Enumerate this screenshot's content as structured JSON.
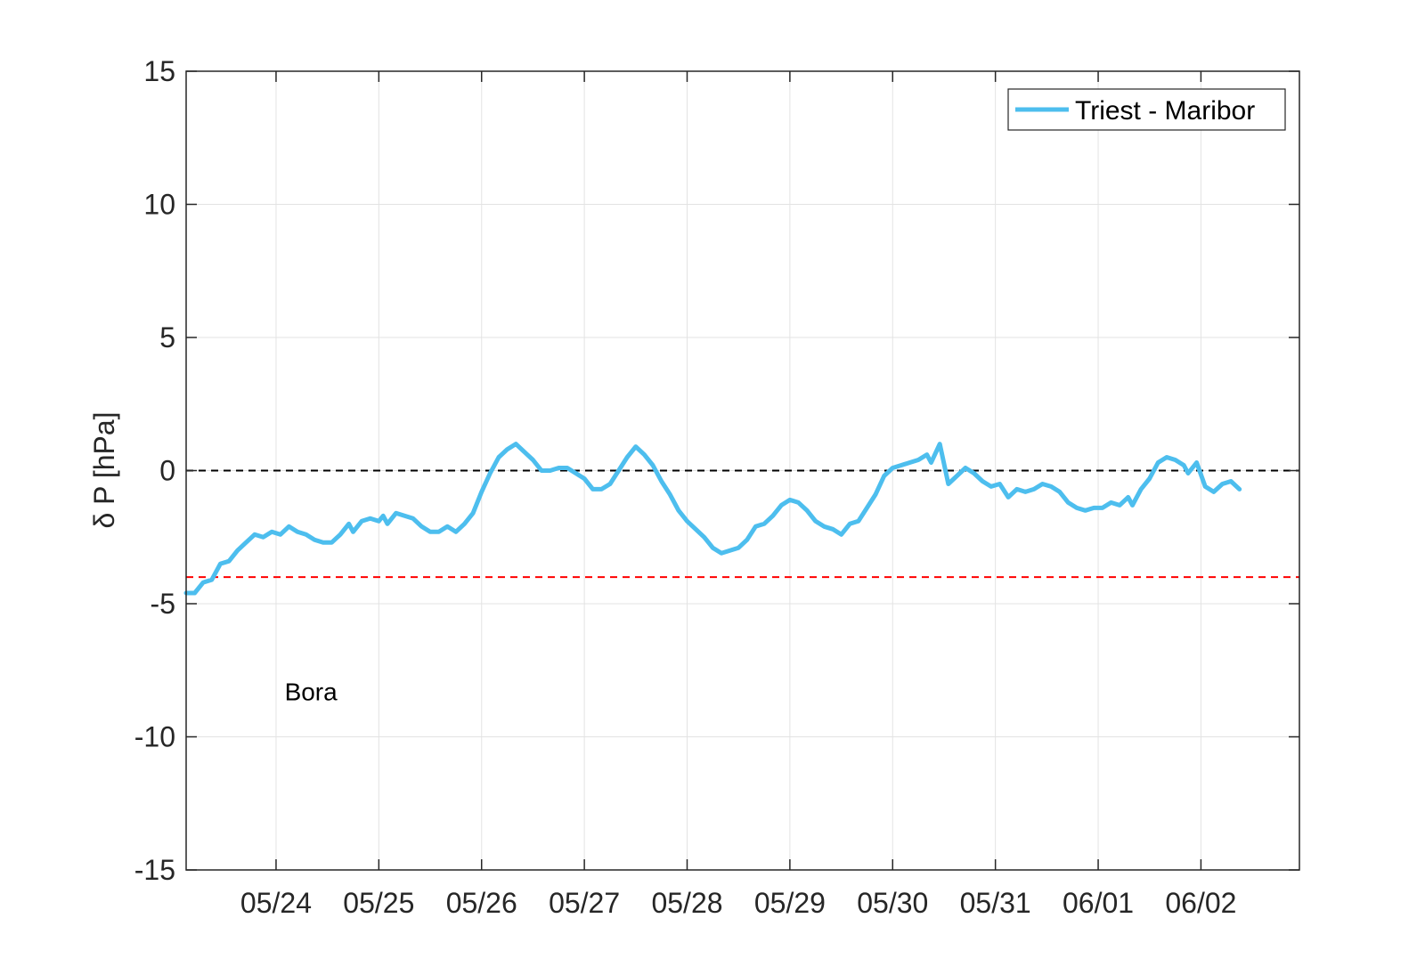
{
  "chart_data": {
    "type": "line",
    "title": "",
    "xlabel": "",
    "ylabel": "δ P [hPa]",
    "ylim": [
      -15,
      15
    ],
    "yticks": [
      15,
      10,
      5,
      0,
      -5,
      -10,
      -15
    ],
    "xlim": [
      "05/23 03:00",
      "06/02 23:00"
    ],
    "xticks": [
      "05/24",
      "05/25",
      "05/26",
      "05/27",
      "05/28",
      "05/29",
      "05/30",
      "05/31",
      "06/01",
      "06/02"
    ],
    "grid": true,
    "legend_position": "top-right",
    "colors": {
      "series": "#4DBEEE",
      "zero_line": "#000000",
      "threshold_line": "#FF0000",
      "grid": "#e3e3e3",
      "axis": "#262626"
    },
    "reference_lines": [
      {
        "y": 0,
        "color": "#000000",
        "style": "dashed"
      },
      {
        "y": -4,
        "color": "#FF0000",
        "style": "dashed"
      }
    ],
    "annotations": [
      {
        "text": "Bora",
        "x": "05/24 02:00",
        "y": -8.3
      }
    ],
    "series": [
      {
        "name": "Triest - Maribor",
        "color": "#4DBEEE",
        "points": [
          [
            "05/23 03:00",
            -4.6
          ],
          [
            "05/23 05:00",
            -4.6
          ],
          [
            "05/23 07:00",
            -4.2
          ],
          [
            "05/23 09:00",
            -4.1
          ],
          [
            "05/23 11:00",
            -3.5
          ],
          [
            "05/23 13:00",
            -3.4
          ],
          [
            "05/23 15:00",
            -3.0
          ],
          [
            "05/23 17:00",
            -2.7
          ],
          [
            "05/23 19:00",
            -2.4
          ],
          [
            "05/23 21:00",
            -2.5
          ],
          [
            "05/23 23:00",
            -2.3
          ],
          [
            "05/24 01:00",
            -2.4
          ],
          [
            "05/24 03:00",
            -2.1
          ],
          [
            "05/24 05:00",
            -2.3
          ],
          [
            "05/24 07:00",
            -2.4
          ],
          [
            "05/24 09:00",
            -2.6
          ],
          [
            "05/24 11:00",
            -2.7
          ],
          [
            "05/24 13:00",
            -2.7
          ],
          [
            "05/24 15:00",
            -2.4
          ],
          [
            "05/24 17:00",
            -2.0
          ],
          [
            "05/24 18:00",
            -2.3
          ],
          [
            "05/24 20:00",
            -1.9
          ],
          [
            "05/24 22:00",
            -1.8
          ],
          [
            "05/25 00:00",
            -1.9
          ],
          [
            "05/25 01:00",
            -1.7
          ],
          [
            "05/25 02:00",
            -2.0
          ],
          [
            "05/25 04:00",
            -1.6
          ],
          [
            "05/25 06:00",
            -1.7
          ],
          [
            "05/25 08:00",
            -1.8
          ],
          [
            "05/25 10:00",
            -2.1
          ],
          [
            "05/25 12:00",
            -2.3
          ],
          [
            "05/25 14:00",
            -2.3
          ],
          [
            "05/25 16:00",
            -2.1
          ],
          [
            "05/25 18:00",
            -2.3
          ],
          [
            "05/25 20:00",
            -2.0
          ],
          [
            "05/25 22:00",
            -1.6
          ],
          [
            "05/26 00:00",
            -0.8
          ],
          [
            "05/26 02:00",
            -0.1
          ],
          [
            "05/26 04:00",
            0.5
          ],
          [
            "05/26 06:00",
            0.8
          ],
          [
            "05/26 08:00",
            1.0
          ],
          [
            "05/26 10:00",
            0.7
          ],
          [
            "05/26 12:00",
            0.4
          ],
          [
            "05/26 14:00",
            0.0
          ],
          [
            "05/26 16:00",
            0.0
          ],
          [
            "05/26 18:00",
            0.1
          ],
          [
            "05/26 20:00",
            0.1
          ],
          [
            "05/26 22:00",
            -0.1
          ],
          [
            "05/27 00:00",
            -0.3
          ],
          [
            "05/27 02:00",
            -0.7
          ],
          [
            "05/27 04:00",
            -0.7
          ],
          [
            "05/27 06:00",
            -0.5
          ],
          [
            "05/27 08:00",
            0.0
          ],
          [
            "05/27 10:00",
            0.5
          ],
          [
            "05/27 12:00",
            0.9
          ],
          [
            "05/27 14:00",
            0.6
          ],
          [
            "05/27 16:00",
            0.2
          ],
          [
            "05/27 18:00",
            -0.4
          ],
          [
            "05/27 20:00",
            -0.9
          ],
          [
            "05/27 22:00",
            -1.5
          ],
          [
            "05/28 00:00",
            -1.9
          ],
          [
            "05/28 02:00",
            -2.2
          ],
          [
            "05/28 04:00",
            -2.5
          ],
          [
            "05/28 06:00",
            -2.9
          ],
          [
            "05/28 08:00",
            -3.1
          ],
          [
            "05/28 10:00",
            -3.0
          ],
          [
            "05/28 12:00",
            -2.9
          ],
          [
            "05/28 14:00",
            -2.6
          ],
          [
            "05/28 16:00",
            -2.1
          ],
          [
            "05/28 18:00",
            -2.0
          ],
          [
            "05/28 20:00",
            -1.7
          ],
          [
            "05/28 22:00",
            -1.3
          ],
          [
            "05/29 00:00",
            -1.1
          ],
          [
            "05/29 02:00",
            -1.2
          ],
          [
            "05/29 04:00",
            -1.5
          ],
          [
            "05/29 06:00",
            -1.9
          ],
          [
            "05/29 08:00",
            -2.1
          ],
          [
            "05/29 10:00",
            -2.2
          ],
          [
            "05/29 12:00",
            -2.4
          ],
          [
            "05/29 14:00",
            -2.0
          ],
          [
            "05/29 16:00",
            -1.9
          ],
          [
            "05/29 18:00",
            -1.4
          ],
          [
            "05/29 20:00",
            -0.9
          ],
          [
            "05/29 22:00",
            -0.2
          ],
          [
            "05/30 00:00",
            0.1
          ],
          [
            "05/30 02:00",
            0.2
          ],
          [
            "05/30 04:00",
            0.3
          ],
          [
            "05/30 06:00",
            0.4
          ],
          [
            "05/30 08:00",
            0.6
          ],
          [
            "05/30 09:00",
            0.3
          ],
          [
            "05/30 11:00",
            1.0
          ],
          [
            "05/30 13:00",
            -0.5
          ],
          [
            "05/30 15:00",
            -0.2
          ],
          [
            "05/30 17:00",
            0.1
          ],
          [
            "05/30 19:00",
            -0.1
          ],
          [
            "05/30 21:00",
            -0.4
          ],
          [
            "05/30 23:00",
            -0.6
          ],
          [
            "05/31 01:00",
            -0.5
          ],
          [
            "05/31 03:00",
            -1.0
          ],
          [
            "05/31 05:00",
            -0.7
          ],
          [
            "05/31 07:00",
            -0.8
          ],
          [
            "05/31 09:00",
            -0.7
          ],
          [
            "05/31 11:00",
            -0.5
          ],
          [
            "05/31 13:00",
            -0.6
          ],
          [
            "05/31 15:00",
            -0.8
          ],
          [
            "05/31 17:00",
            -1.2
          ],
          [
            "05/31 19:00",
            -1.4
          ],
          [
            "05/31 21:00",
            -1.5
          ],
          [
            "05/31 23:00",
            -1.4
          ],
          [
            "06/01 01:00",
            -1.4
          ],
          [
            "06/01 03:00",
            -1.2
          ],
          [
            "06/01 05:00",
            -1.3
          ],
          [
            "06/01 07:00",
            -1.0
          ],
          [
            "06/01 08:00",
            -1.3
          ],
          [
            "06/01 10:00",
            -0.7
          ],
          [
            "06/01 12:00",
            -0.3
          ],
          [
            "06/01 14:00",
            0.3
          ],
          [
            "06/01 16:00",
            0.5
          ],
          [
            "06/01 18:00",
            0.4
          ],
          [
            "06/01 20:00",
            0.2
          ],
          [
            "06/01 21:00",
            -0.1
          ],
          [
            "06/01 23:00",
            0.3
          ],
          [
            "06/02 01:00",
            -0.6
          ],
          [
            "06/02 03:00",
            -0.8
          ],
          [
            "06/02 05:00",
            -0.5
          ],
          [
            "06/02 07:00",
            -0.4
          ],
          [
            "06/02 09:00",
            -0.7
          ]
        ]
      }
    ]
  }
}
